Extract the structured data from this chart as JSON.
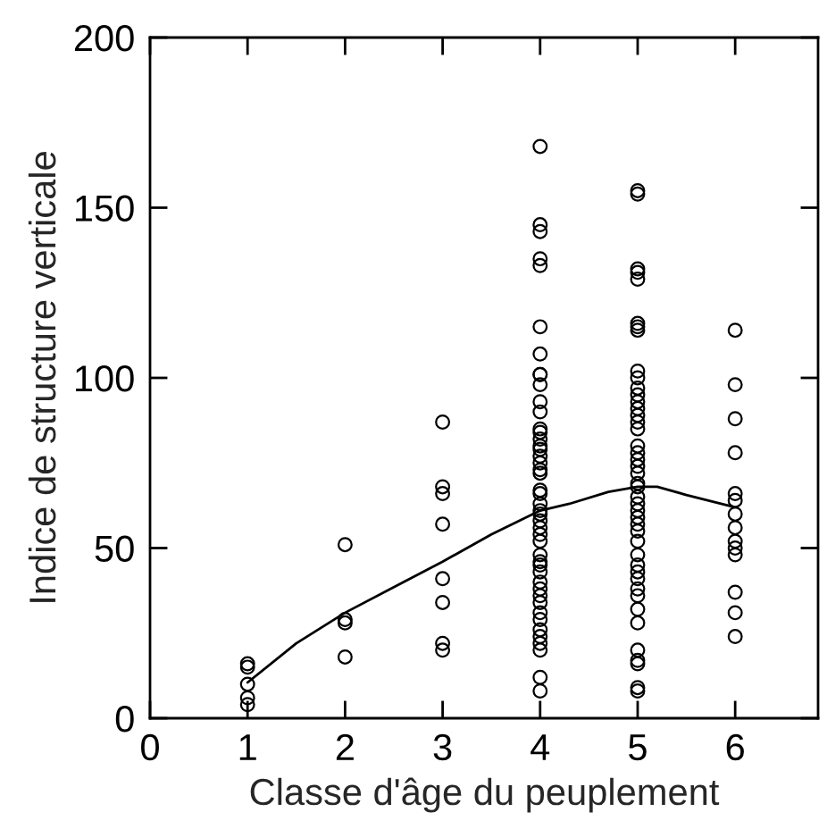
{
  "chart_data": {
    "type": "scatter",
    "xlabel": "Classe d'âge du peuplement",
    "ylabel": "Indice de structure verticale",
    "xlim": [
      0,
      6.85
    ],
    "xticks": [
      0,
      1,
      2,
      3,
      4,
      5,
      6
    ],
    "ylim": [
      0,
      200
    ],
    "yticks": [
      0,
      50,
      100,
      150,
      200
    ],
    "grid": false,
    "legend": false,
    "series": [
      {
        "color": "#000000",
        "marker": "circle",
        "x": [
          1,
          1,
          1,
          1,
          1,
          2,
          2,
          2,
          2,
          3,
          3,
          3,
          3,
          3,
          3,
          3,
          3,
          4,
          4,
          4,
          4,
          4,
          4,
          4,
          4,
          4,
          4,
          4,
          4,
          4,
          4,
          4,
          4,
          4,
          4,
          4,
          4,
          4,
          4,
          4,
          4,
          4,
          4,
          4,
          4,
          4,
          4,
          4,
          4,
          4,
          4,
          4,
          4,
          4,
          4,
          4,
          4,
          4,
          4,
          4,
          4,
          4,
          4,
          5,
          5,
          5,
          5,
          5,
          5,
          5,
          5,
          5,
          5,
          5,
          5,
          5,
          5,
          5,
          5,
          5,
          5,
          5,
          5,
          5,
          5,
          5,
          5,
          5,
          5,
          5,
          5,
          5,
          5,
          5,
          5,
          5,
          5,
          5,
          5,
          5,
          5,
          5,
          5,
          5,
          5,
          5,
          5,
          6,
          6,
          6,
          6,
          6,
          6,
          6,
          6,
          6,
          6,
          6,
          6,
          6,
          6
        ],
        "values": [
          16,
          15,
          10,
          6,
          4,
          51,
          29,
          28,
          18,
          87,
          68,
          66,
          57,
          41,
          34,
          22,
          20,
          168,
          145,
          143,
          135,
          133,
          115,
          107,
          101,
          101,
          98,
          93,
          90,
          85,
          84,
          82,
          80,
          79,
          77,
          75,
          73,
          72,
          67,
          66,
          63,
          61,
          60,
          58,
          56,
          54,
          52,
          48,
          46,
          45,
          43,
          40,
          38,
          36,
          34,
          31,
          29,
          26,
          24,
          22,
          20,
          12,
          8,
          155,
          154,
          132,
          131,
          129,
          116,
          115,
          114,
          102,
          100,
          97,
          95,
          93,
          91,
          89,
          87,
          85,
          80,
          78,
          76,
          74,
          72,
          69,
          68,
          65,
          63,
          61,
          59,
          57,
          55,
          52,
          48,
          45,
          43,
          41,
          38,
          36,
          32,
          28,
          20,
          17,
          16,
          9,
          8,
          114,
          98,
          88,
          78,
          66,
          64,
          60,
          56,
          52,
          50,
          48,
          37,
          31,
          24
        ]
      },
      {
        "type": "line",
        "color": "#000000",
        "marker": "none",
        "line_style": "solid",
        "x": [
          1,
          1.5,
          2,
          2.5,
          3,
          3.5,
          4,
          4.3,
          4.7,
          5,
          5.2,
          5.5,
          6
        ],
        "values": [
          10.5,
          22,
          31,
          38.5,
          46,
          54,
          61,
          63,
          66.5,
          68,
          68,
          65.6,
          62
        ]
      }
    ]
  }
}
